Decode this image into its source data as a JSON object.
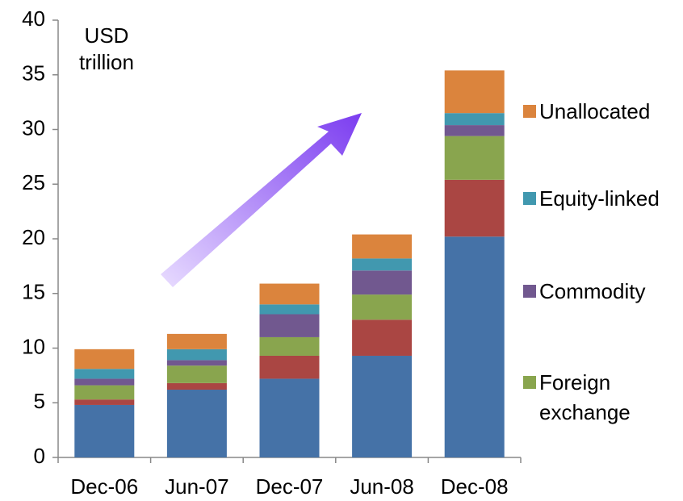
{
  "chart_data": {
    "type": "stacked_bar",
    "y_label": "USD trillion",
    "categories": [
      "Dec-06",
      "Jun-07",
      "Dec-07",
      "Jun-08",
      "Dec-08"
    ],
    "series": [
      {
        "color": "#4572a7",
        "values": [
          4.8,
          6.2,
          7.2,
          9.3,
          20.2
        ]
      },
      {
        "color": "#aa4643",
        "values": [
          0.5,
          0.6,
          2.1,
          3.3,
          5.2
        ]
      },
      {
        "name": "Foreign exchange",
        "color": "#89a54e",
        "values": [
          1.3,
          1.6,
          1.7,
          2.3,
          4.0
        ]
      },
      {
        "name": "Commodity",
        "color": "#71588f",
        "values": [
          0.6,
          0.5,
          2.1,
          2.2,
          1.0
        ]
      },
      {
        "name": "Equity-linked",
        "color": "#4198af",
        "values": [
          0.9,
          1.0,
          0.9,
          1.1,
          1.1
        ]
      },
      {
        "name": "Unallocated",
        "color": "#db843d",
        "values": [
          1.8,
          1.4,
          1.9,
          2.2,
          3.9
        ]
      }
    ],
    "ylim": [
      0,
      40
    ],
    "yticks": [
      0,
      5,
      10,
      15,
      20,
      25,
      30,
      35,
      40
    ]
  }
}
